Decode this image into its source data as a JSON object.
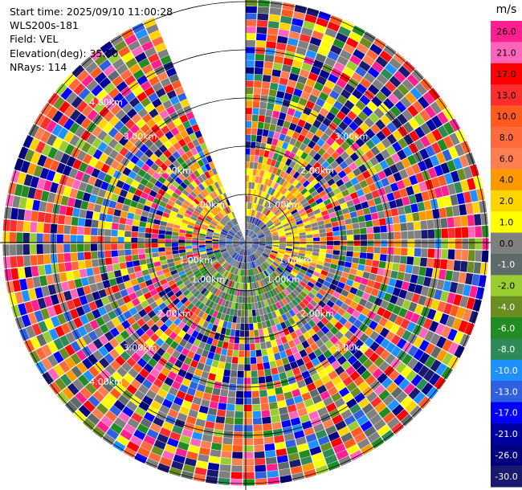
{
  "header": {
    "start_time": "Start time: 2025/09/10 11:00:28",
    "instrument": "WLS200s-181",
    "field": "Field: VEL",
    "elevation": "Elevation(deg): 35.00",
    "nrays": "NRays: 114"
  },
  "chart_data": {
    "type": "heatmap",
    "projection": "polar-ppi",
    "field": "VEL",
    "units": "m/s",
    "elevation_deg": 35.0,
    "n_rays": 114,
    "missing_sector_azimuth_deg": [
      338,
      360
    ],
    "range_ring_labels": [
      "1.00km",
      "2.00km",
      "3.00km",
      "4.00km",
      "5.00km",
      "6.00km",
      "7.00km"
    ],
    "colorbar": {
      "unit_label": "m/s",
      "ticks": [
        "26.0",
        "21.0",
        "17.0",
        "13.0",
        "10.0",
        "8.0",
        "6.0",
        "4.0",
        "2.0",
        "1.0",
        "0.0",
        "-1.0",
        "-2.0",
        "-4.0",
        "-6.0",
        "-8.0",
        "-10.0",
        "-13.0",
        "-17.0",
        "-21.0",
        "-26.0",
        "-30.0"
      ],
      "colors": [
        "#ff1f8f",
        "#ff66bb",
        "#ff0000",
        "#ff2e2e",
        "#ff5a1f",
        "#ff6a3d",
        "#ff7f50",
        "#ff9900",
        "#ffd400",
        "#ffff00",
        "#808080",
        "#5f6b6b",
        "#9acd32",
        "#6b8e23",
        "#228b22",
        "#2e8b57",
        "#1e90ff",
        "#3060e0",
        "#0000ff",
        "#0000a0",
        "#000080",
        "#191970"
      ]
    }
  }
}
